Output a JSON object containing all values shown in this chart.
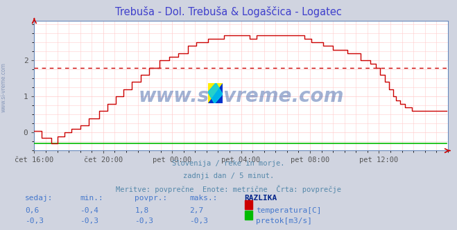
{
  "title": "Trebuša - Dol. Trebuša & Logaščica - Logatec",
  "title_color": "#4040cc",
  "bg_color": "#d0d4e0",
  "plot_bg_color": "#ffffff",
  "grid_color": "#ffcccc",
  "temp_line_color": "#cc0000",
  "flow_line_color": "#00bb00",
  "avg_line_color": "#cc0000",
  "avg_value": 1.8,
  "spine_color": "#6688bb",
  "x_labels": [
    "čet 16:00",
    "čet 20:00",
    "pet 00:00",
    "pet 04:00",
    "pet 08:00",
    "pet 12:00"
  ],
  "y_ticks": [
    0,
    1,
    2
  ],
  "ylim": [
    -0.5,
    3.1
  ],
  "xlim": [
    0,
    288
  ],
  "subtitle1": "Slovenija / reke in morje.",
  "subtitle2": "zadnji dan / 5 minut.",
  "subtitle3": "Meritve: povprečne  Enote: metrične  Črta: povprečje",
  "subtitle_color": "#5588aa",
  "watermark": "www.si-vreme.com",
  "watermark_color": "#4466aa",
  "left_label": "www.si-vreme.com",
  "left_label_color": "#8899bb",
  "table_headers": [
    "sedaj:",
    "min.:",
    "povpr.:",
    "maks.:",
    "RAZLIKA"
  ],
  "table_row1": [
    "0,6",
    "-0,4",
    "1,8",
    "2,7",
    "temperatura[C]"
  ],
  "table_row2": [
    "-0,3",
    "-0,3",
    "-0,3",
    "-0,3",
    "pretok[m3/s]"
  ],
  "table_color": "#4477cc",
  "table_header_color": "#002288",
  "n_points": 288,
  "flow_value": -0.3
}
